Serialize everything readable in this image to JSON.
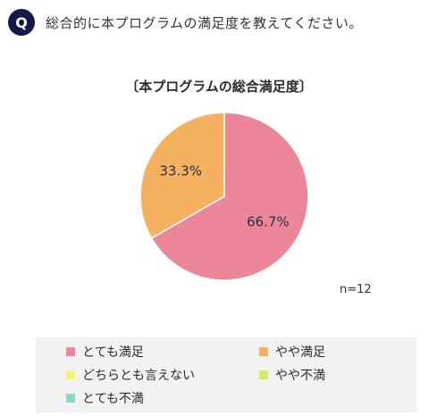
{
  "question": {
    "badge": "Q",
    "text": "総合的に本プログラムの満足度を教えてください。"
  },
  "chart_data": {
    "type": "pie",
    "title": "〔本プログラムの総合満足度〕",
    "sample_size_label": "n=12",
    "categories": [
      "とても満足",
      "やや満足",
      "どちらとも言えない",
      "やや不満",
      "とても不満"
    ],
    "values": [
      66.7,
      33.3,
      0,
      0,
      0
    ],
    "value_labels": [
      "66.7%",
      "33.3%",
      "",
      "",
      ""
    ],
    "colors": [
      "#ec8799",
      "#f5b060",
      "#f7f17c",
      "#d6e86a",
      "#84d9d0"
    ],
    "legend_position": "bottom"
  }
}
